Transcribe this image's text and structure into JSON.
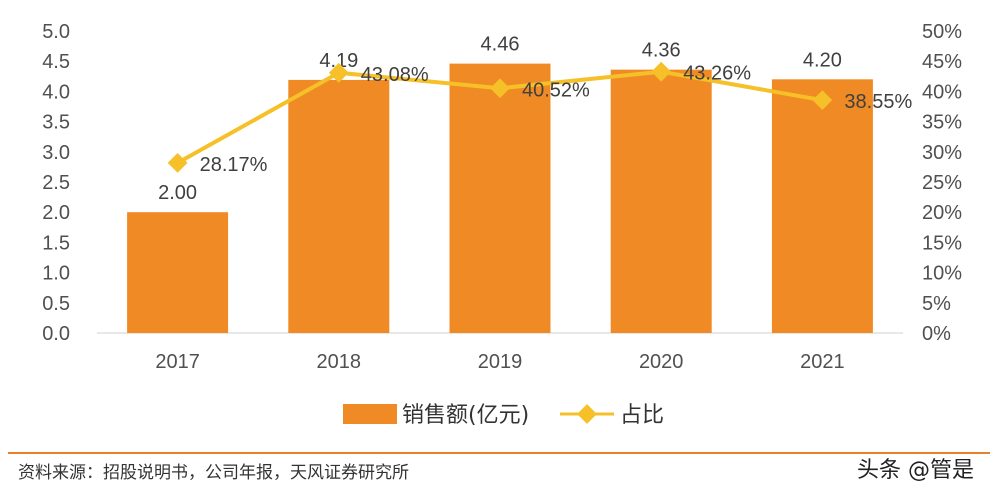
{
  "chart_data": {
    "type": "bar",
    "categories": [
      "2017",
      "2018",
      "2019",
      "2020",
      "2021"
    ],
    "series": [
      {
        "name": "销售额(亿元)",
        "type": "bar",
        "axis": "left",
        "color": "#F08A24",
        "values": [
          2.0,
          4.19,
          4.46,
          4.36,
          4.2
        ],
        "labels": [
          "2.00",
          "4.19",
          "4.46",
          "4.36",
          "4.20"
        ]
      },
      {
        "name": "占比",
        "type": "line",
        "axis": "right",
        "color": "#F5C028",
        "values": [
          28.17,
          43.08,
          40.52,
          43.26,
          38.55
        ],
        "labels": [
          "28.17%",
          "43.08%",
          "40.52%",
          "43.26%",
          "38.55%"
        ]
      }
    ],
    "y_left": {
      "ylim": [
        0,
        5
      ],
      "ticks": [
        "0.0",
        "0.5",
        "1.0",
        "1.5",
        "2.0",
        "2.5",
        "3.0",
        "3.5",
        "4.0",
        "4.5",
        "5.0"
      ]
    },
    "y_right": {
      "ylim": [
        0,
        50
      ],
      "ticks": [
        "0%",
        "5%",
        "10%",
        "15%",
        "20%",
        "25%",
        "30%",
        "35%",
        "40%",
        "45%",
        "50%"
      ]
    },
    "legend_position": "bottom",
    "grid": false
  },
  "source_note": "资料来源：招股说明书，公司年报，天风证券研究所",
  "watermark": "头条 @管是",
  "colors": {
    "divider": "#E8822A"
  }
}
